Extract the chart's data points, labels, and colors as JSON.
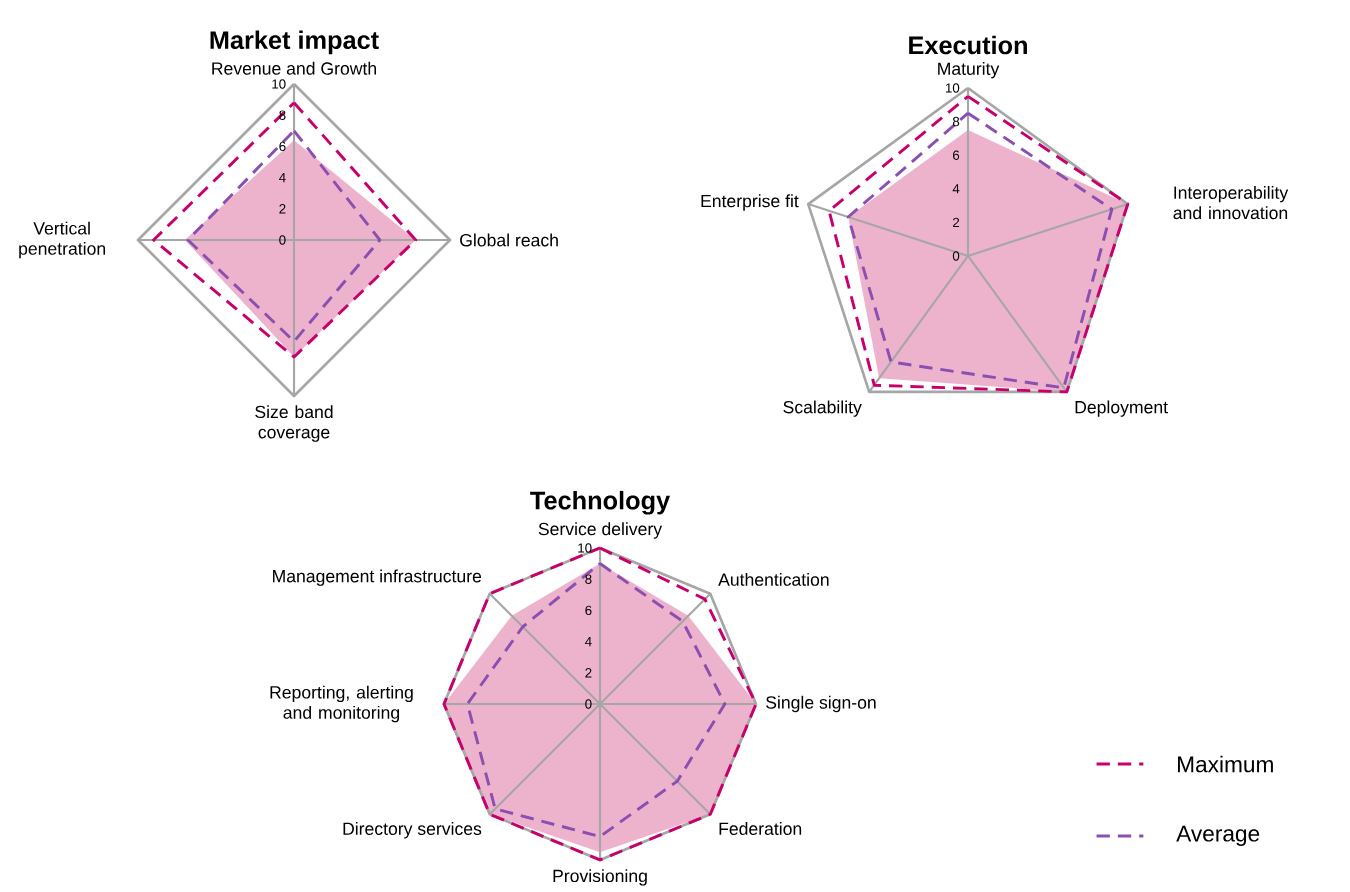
{
  "chart_data": [
    {
      "type": "radar",
      "title": "Market impact",
      "categories": [
        "Revenue and Growth",
        "Global reach",
        "Size band coverage",
        "Vertical penetration"
      ],
      "ylim": [
        0,
        10
      ],
      "yticks": [
        0,
        2,
        4,
        6,
        8,
        10
      ],
      "series": [
        {
          "color": "#eeb3cc",
          "values": [
            6.4,
            7.8,
            7.5,
            7.0
          ]
        },
        {
          "color": "#c8006e",
          "line_style": "dashed",
          "values": [
            8.8,
            7.8,
            7.5,
            9.0
          ]
        },
        {
          "color": "#8a4fb0",
          "line_style": "dashed",
          "values": [
            7.0,
            5.5,
            6.5,
            6.8
          ]
        }
      ]
    },
    {
      "type": "radar",
      "title": "Execution",
      "categories": [
        "Maturity",
        "Interoperability and innovation",
        "Deployment",
        "Scalability",
        "Enterprise fit"
      ],
      "ylim": [
        0,
        10
      ],
      "yticks": [
        0,
        2,
        4,
        6,
        8,
        10
      ],
      "series": [
        {
          "color": "#eeb3cc",
          "values": [
            7.5,
            10,
            10,
            9.0,
            7.5
          ]
        },
        {
          "color": "#c8006e",
          "line_style": "dashed",
          "values": [
            9.5,
            10,
            10,
            9.5,
            8.7
          ]
        },
        {
          "color": "#8a4fb0",
          "line_style": "dashed",
          "values": [
            8.5,
            9.0,
            9.7,
            7.8,
            7.5
          ]
        }
      ]
    },
    {
      "type": "radar",
      "title": "Technology",
      "categories": [
        "Service delivery",
        "Authentication",
        "Single sign-on",
        "Federation",
        "Provisioning",
        "Directory services",
        "Reporting, alerting and monitoring",
        "Management infrastructure"
      ],
      "ylim": [
        0,
        10
      ],
      "yticks": [
        0,
        2,
        4,
        6,
        8,
        10
      ],
      "legend": "right",
      "series": [
        {
          "color": "#eeb3cc",
          "values": [
            9.0,
            8.0,
            10,
            10,
            9.5,
            10,
            10,
            8.0
          ]
        },
        {
          "name": "Maximum",
          "color": "#c8006e",
          "line_style": "dashed",
          "values": [
            10,
            9.5,
            10,
            10,
            10,
            10,
            10,
            10
          ]
        },
        {
          "name": "Average",
          "color": "#8a4fb0",
          "line_style": "dashed",
          "values": [
            9.0,
            7.5,
            8.0,
            7.0,
            8.5,
            9.5,
            8.5,
            7.0
          ]
        }
      ]
    }
  ]
}
